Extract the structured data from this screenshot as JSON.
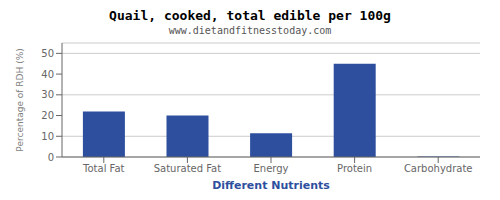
{
  "chart_data": {
    "type": "bar",
    "title": "Quail, cooked, total edible per 100g",
    "subtitle": "www.dietandfitnesstoday.com",
    "xlabel": "Different Nutrients",
    "ylabel": "Percentage of RDH (%)",
    "categories": [
      "Total Fat",
      "Saturated Fat",
      "Energy",
      "Protein",
      "Carbohydrate"
    ],
    "values": [
      22,
      20,
      11.5,
      45,
      0.3
    ],
    "color": "#2d4f9e",
    "ylim": [
      0,
      55
    ],
    "yticks": [
      0,
      10,
      20,
      30,
      40,
      50
    ],
    "grid": true
  }
}
